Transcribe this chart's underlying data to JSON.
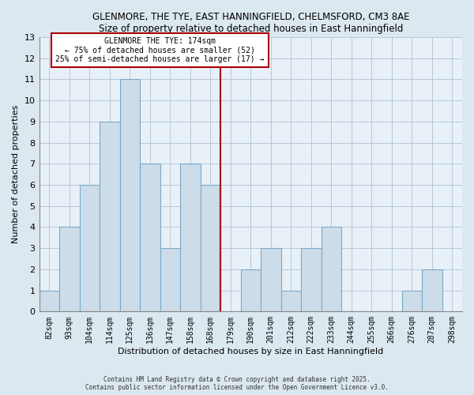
{
  "title1": "GLENMORE, THE TYE, EAST HANNINGFIELD, CHELMSFORD, CM3 8AE",
  "title2": "Size of property relative to detached houses in East Hanningfield",
  "xlabel": "Distribution of detached houses by size in East Hanningfield",
  "ylabel": "Number of detached properties",
  "bar_labels": [
    "82sqm",
    "93sqm",
    "104sqm",
    "114sqm",
    "125sqm",
    "136sqm",
    "147sqm",
    "158sqm",
    "168sqm",
    "179sqm",
    "190sqm",
    "201sqm",
    "212sqm",
    "222sqm",
    "233sqm",
    "244sqm",
    "255sqm",
    "266sqm",
    "276sqm",
    "287sqm",
    "298sqm"
  ],
  "bar_values": [
    1,
    4,
    6,
    9,
    11,
    7,
    3,
    7,
    6,
    0,
    2,
    3,
    1,
    3,
    4,
    0,
    0,
    0,
    1,
    2,
    0
  ],
  "bar_color": "#ccdce8",
  "bar_edge_color": "#7aaac8",
  "vline_x_idx": 8,
  "vline_color": "#aa0000",
  "annotation_title": "GLENMORE THE TYE: 174sqm",
  "annotation_line1": "← 75% of detached houses are smaller (52)",
  "annotation_line2": "25% of semi-detached houses are larger (17) →",
  "annotation_box_edge": "#aa0000",
  "ylim": [
    0,
    13
  ],
  "yticks": [
    0,
    1,
    2,
    3,
    4,
    5,
    6,
    7,
    8,
    9,
    10,
    11,
    12,
    13
  ],
  "footnote1": "Contains HM Land Registry data © Crown copyright and database right 2025.",
  "footnote2": "Contains public sector information licensed under the Open Government Licence v3.0.",
  "bg_color": "#dce8f0",
  "plot_bg_color": "#e8f0f8",
  "grid_color": "#b8c8d8"
}
